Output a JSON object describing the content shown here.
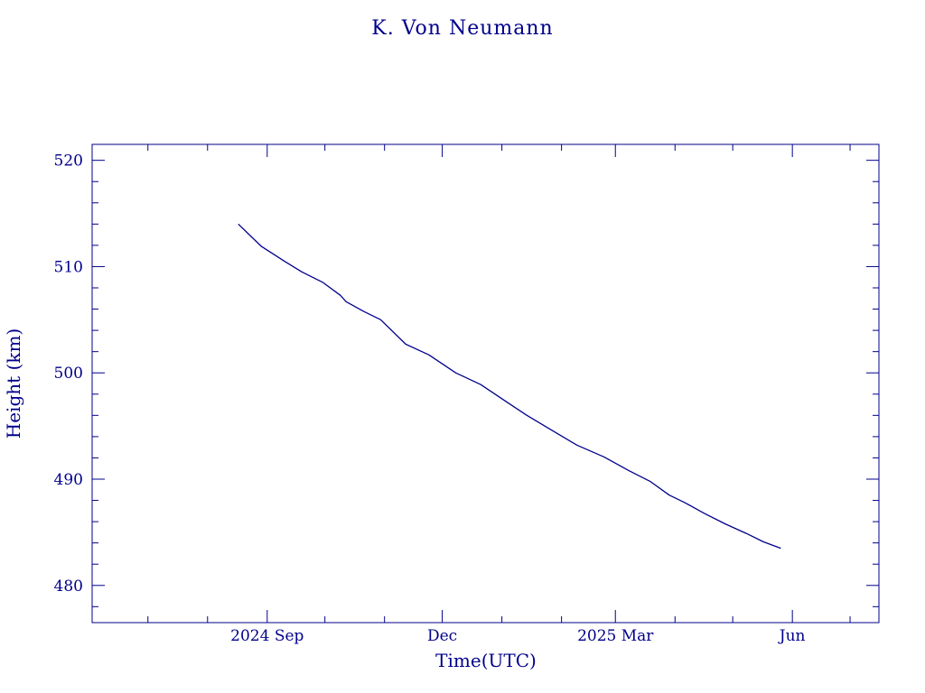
{
  "chart_data": {
    "type": "line",
    "title": "K. Von Neumann",
    "xlabel": "Time(UTC)",
    "ylabel": "Height (km)",
    "color": "#00008b",
    "x_type": "date",
    "xlim": [
      "2024-06-02",
      "2025-07-16"
    ],
    "ylim": [
      476.5,
      521.5
    ],
    "y_ticks": [
      480,
      490,
      500,
      510,
      520
    ],
    "x_major_ticks": [
      {
        "date": "2024-09-01",
        "label": "2024 Sep"
      },
      {
        "date": "2024-12-01",
        "label": "Dec"
      },
      {
        "date": "2025-03-01",
        "label": "2025 Mar"
      },
      {
        "date": "2025-06-01",
        "label": "Jun"
      }
    ],
    "x_minor_ticks": [
      "2024-07-01",
      "2024-08-01",
      "2024-10-01",
      "2024-11-01",
      "2025-01-01",
      "2025-02-01",
      "2025-04-01",
      "2025-05-01",
      "2025-07-01"
    ],
    "grid": false,
    "series": [
      {
        "x": [
          "2024-08-17",
          "2024-08-29",
          "2024-09-10",
          "2024-09-19",
          "2024-09-30",
          "2024-10-09",
          "2024-10-12",
          "2024-10-21",
          "2024-10-30",
          "2024-11-12",
          "2024-11-24",
          "2024-12-08",
          "2024-12-21",
          "2025-01-04",
          "2025-01-14",
          "2025-01-26",
          "2025-02-09",
          "2025-02-23",
          "2025-03-08",
          "2025-03-19",
          "2025-03-29",
          "2025-04-06",
          "2025-04-16",
          "2025-04-27",
          "2025-05-08",
          "2025-05-17",
          "2025-05-26"
        ],
        "y": [
          514.0,
          511.9,
          510.5,
          509.5,
          508.5,
          507.3,
          506.7,
          505.8,
          505.0,
          502.7,
          501.7,
          500.0,
          498.9,
          497.2,
          496.0,
          494.7,
          493.2,
          492.1,
          490.8,
          489.8,
          488.5,
          487.8,
          486.8,
          485.8,
          484.9,
          484.1,
          483.5
        ]
      }
    ]
  }
}
